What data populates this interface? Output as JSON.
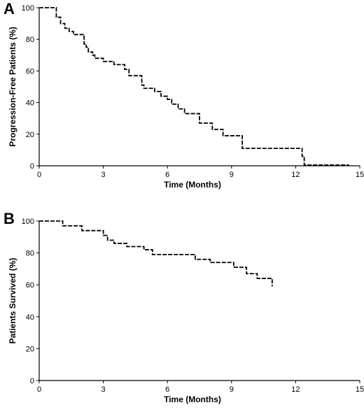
{
  "chart_data": [
    {
      "type": "line",
      "panel_label": "A",
      "xlabel": "Time (Months)",
      "ylabel": "Progression-Free Patients (%)",
      "xlim": [
        0,
        15
      ],
      "ylim": [
        0,
        100
      ],
      "x_ticks": [
        0,
        3,
        6,
        9,
        12,
        15
      ],
      "y_ticks": [
        0,
        20,
        40,
        60,
        80,
        100
      ],
      "grid": false,
      "series": [
        {
          "style": "step",
          "x": [
            0,
            0.8,
            1.0,
            1.2,
            1.4,
            1.6,
            2.1,
            2.2,
            2.3,
            2.5,
            2.6,
            3.0,
            3.5,
            4.0,
            4.2,
            4.8,
            4.9,
            5.4,
            5.7,
            6.0,
            6.2,
            6.5,
            6.8,
            7.5,
            8.1,
            8.6,
            9.5,
            12.3,
            12.4,
            14.5
          ],
          "y": [
            100,
            94,
            90,
            87,
            85,
            83,
            77,
            75,
            72,
            70,
            68,
            66,
            64,
            61,
            57,
            51,
            49,
            47,
            44,
            42,
            39,
            36,
            33,
            27,
            23,
            19,
            11,
            6,
            0.5,
            0.5
          ]
        }
      ]
    },
    {
      "type": "line",
      "panel_label": "B",
      "xlabel": "Time (Months)",
      "ylabel": "Patients Survived (%)",
      "xlim": [
        0,
        15
      ],
      "ylim": [
        0,
        100
      ],
      "x_ticks": [
        0,
        3,
        6,
        9,
        12,
        15
      ],
      "y_ticks": [
        0,
        20,
        40,
        60,
        80,
        100
      ],
      "grid": false,
      "series": [
        {
          "style": "step",
          "x": [
            0,
            1.1,
            2.0,
            3.0,
            3.2,
            3.5,
            4.1,
            4.9,
            5.3,
            7.3,
            8.0,
            9.1,
            9.7,
            10.2,
            10.9
          ],
          "y": [
            100,
            97,
            94,
            91,
            88,
            86,
            84,
            82,
            79,
            76,
            74,
            71,
            67,
            64,
            59
          ]
        }
      ]
    }
  ]
}
